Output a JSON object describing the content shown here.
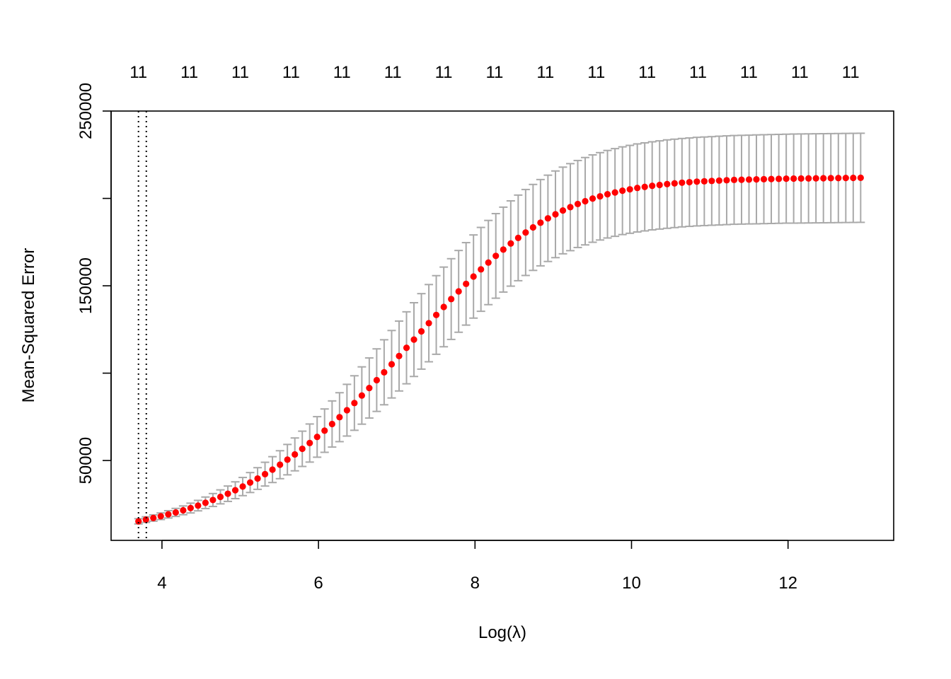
{
  "chart_data": {
    "type": "scatter",
    "title": "",
    "xlabel": "Log(λ)",
    "ylabel": "Mean-Squared Error",
    "xlim": [
      3.35,
      13.35
    ],
    "ylim": [
      4300,
      250000
    ],
    "x_ticks": [
      4,
      6,
      8,
      10,
      12
    ],
    "x_tick_labels": [
      "4",
      "6",
      "8",
      "10",
      "12"
    ],
    "y_ticks": [
      50000,
      100000,
      150000,
      200000,
      250000
    ],
    "y_tick_labels": [
      "50000",
      "",
      "150000",
      "",
      "250000"
    ],
    "top_ticks_x": [
      3.7,
      4.35,
      5.0,
      5.65,
      6.3,
      6.95,
      7.6,
      8.25,
      8.9,
      9.55,
      10.2,
      10.85,
      11.5,
      12.15,
      12.8
    ],
    "top_tick_labels": [
      "11",
      "11",
      "11",
      "11",
      "11",
      "11",
      "11",
      "11",
      "11",
      "11",
      "11",
      "11",
      "11",
      "11",
      "11"
    ],
    "vlines": [
      3.7,
      3.8
    ],
    "series": [
      {
        "color": "#ff0000",
        "error_bar_color": "#a9a9a9",
        "x": [
          3.7,
          3.795,
          3.89,
          3.985,
          4.081,
          4.176,
          4.271,
          4.366,
          4.461,
          4.556,
          4.651,
          4.747,
          4.842,
          4.937,
          5.032,
          5.127,
          5.222,
          5.317,
          5.412,
          5.508,
          5.603,
          5.698,
          5.793,
          5.888,
          5.983,
          6.078,
          6.174,
          6.269,
          6.364,
          6.459,
          6.554,
          6.649,
          6.744,
          6.839,
          6.935,
          7.03,
          7.125,
          7.22,
          7.315,
          7.41,
          7.505,
          7.601,
          7.696,
          7.791,
          7.886,
          7.981,
          8.076,
          8.171,
          8.266,
          8.362,
          8.457,
          8.552,
          8.647,
          8.742,
          8.837,
          8.932,
          9.028,
          9.123,
          9.218,
          9.313,
          9.408,
          9.503,
          9.598,
          9.693,
          9.789,
          9.884,
          9.979,
          10.074,
          10.169,
          10.264,
          10.359,
          10.455,
          10.55,
          10.645,
          10.74,
          10.835,
          10.93,
          11.025,
          11.12,
          11.216,
          11.311,
          11.406,
          11.501,
          11.596,
          11.691,
          11.786,
          11.882,
          11.977,
          12.072,
          12.167,
          12.262,
          12.357,
          12.452,
          12.547,
          12.643,
          12.738,
          12.833,
          12.928
        ],
        "y": [
          15200,
          16200,
          17100,
          18100,
          19200,
          20300,
          21500,
          22800,
          24200,
          25800,
          27400,
          29200,
          31000,
          33000,
          35100,
          37400,
          39700,
          42200,
          44800,
          47600,
          50500,
          53500,
          56700,
          60000,
          63500,
          67100,
          70900,
          74800,
          78800,
          82900,
          87200,
          91500,
          96000,
          100500,
          105100,
          109800,
          114500,
          119200,
          123900,
          128600,
          133300,
          137900,
          142400,
          146800,
          151100,
          155300,
          159400,
          163300,
          167100,
          170700,
          174200,
          177400,
          180500,
          183400,
          186100,
          188600,
          190900,
          193100,
          195000,
          196800,
          198400,
          199900,
          201200,
          202400,
          203400,
          204400,
          205200,
          206000,
          206600,
          207200,
          207700,
          208200,
          208600,
          209000,
          209300,
          209600,
          209800,
          210000,
          210200,
          210400,
          210600,
          210700,
          210800,
          210900,
          211000,
          211100,
          211200,
          211300,
          211350,
          211400,
          211450,
          211500,
          211550,
          211600,
          211650,
          211700,
          211750,
          211800
        ],
        "se": [
          1500,
          1600,
          1800,
          1900,
          2100,
          2300,
          2500,
          2800,
          3000,
          3300,
          3700,
          4000,
          4400,
          4800,
          5200,
          5700,
          6200,
          6800,
          7400,
          8000,
          8700,
          9400,
          10100,
          10900,
          11600,
          12400,
          13200,
          14000,
          14800,
          15600,
          16400,
          17200,
          17900,
          18600,
          19300,
          20000,
          20600,
          21100,
          21600,
          22100,
          22500,
          22800,
          23100,
          23400,
          23600,
          23800,
          24000,
          24100,
          24200,
          24300,
          24400,
          24500,
          24600,
          24600,
          24700,
          24700,
          24800,
          24800,
          24900,
          24900,
          25000,
          25000,
          25000,
          25050,
          25100,
          25100,
          25150,
          25200,
          25200,
          25200,
          25250,
          25300,
          25300,
          25300,
          25300,
          25350,
          25350,
          25350,
          25400,
          25400,
          25400,
          25400,
          25400,
          25450,
          25450,
          25450,
          25450,
          25450,
          25500,
          25500,
          25500,
          25500,
          25500,
          25500,
          25500,
          25500,
          25500,
          25500
        ]
      }
    ]
  }
}
